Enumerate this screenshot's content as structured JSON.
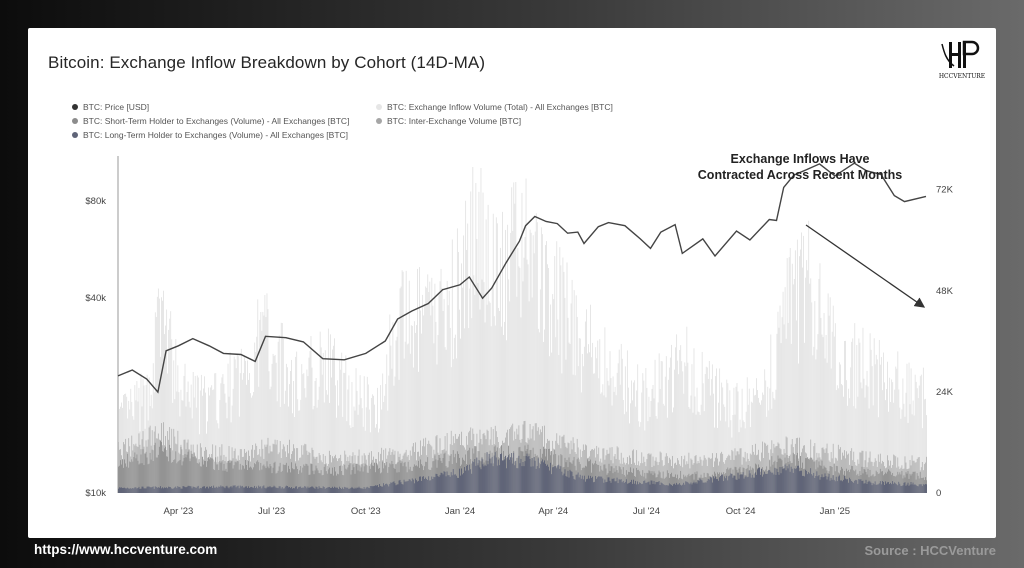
{
  "title": "Bitcoin: Exchange Inflow Breakdown by Cohort (14D-MA)",
  "brand": {
    "logo_text": "HCCVENTURE"
  },
  "footer": {
    "url": "https://www.hccventure.com",
    "source": "Source : HCCVenture"
  },
  "legend": [
    {
      "label": "BTC: Price [USD]",
      "color": "#333333"
    },
    {
      "label": "BTC: Exchange Inflow Volume (Total) - All Exchanges [BTC]",
      "color": "#e6e6e6"
    },
    {
      "label": "BTC: Short-Term Holder to Exchanges (Volume) - All Exchanges [BTC]",
      "color": "#8c8c8c"
    },
    {
      "label": "BTC: Inter-Exchange Volume [BTC]",
      "color": "#a6a6a6"
    },
    {
      "label": "BTC: Long-Term Holder to Exchanges (Volume) - All Exchanges [BTC]",
      "color": "#5f6478"
    }
  ],
  "annotation": {
    "line1": "Exchange Inflows Have",
    "line2": "Contracted Across Recent Months"
  },
  "chart_data": {
    "type": "bar",
    "x_range": [
      "2023-02-01",
      "2025-03-31"
    ],
    "x_ticks": [
      "Apr '23",
      "Jul '23",
      "Oct '23",
      "Jan '24",
      "Apr '24",
      "Jul '24",
      "Oct '24",
      "Jan '25"
    ],
    "y_left": {
      "scale": "log",
      "range": [
        10000,
        110000
      ],
      "ticks": [
        "$10k",
        "$40k",
        "$80k"
      ],
      "tick_values": [
        10000,
        40000,
        80000
      ]
    },
    "y_right": {
      "range": [
        0,
        80000
      ],
      "ticks": [
        "0",
        "24K",
        "48K",
        "72K"
      ],
      "tick_values": [
        0,
        24000,
        48000,
        72000
      ]
    },
    "price_usd": {
      "dates": [
        "2023-02-01",
        "2023-02-15",
        "2023-03-01",
        "2023-03-12",
        "2023-03-20",
        "2023-04-01",
        "2023-04-15",
        "2023-05-01",
        "2023-05-15",
        "2023-06-01",
        "2023-06-15",
        "2023-06-25",
        "2023-07-15",
        "2023-08-01",
        "2023-08-20",
        "2023-09-10",
        "2023-10-01",
        "2023-10-20",
        "2023-11-01",
        "2023-11-15",
        "2023-12-01",
        "2023-12-15",
        "2024-01-01",
        "2024-01-10",
        "2024-01-23",
        "2024-02-01",
        "2024-02-15",
        "2024-02-28",
        "2024-03-05",
        "2024-03-14",
        "2024-03-25",
        "2024-04-05",
        "2024-04-15",
        "2024-04-25",
        "2024-05-01",
        "2024-05-15",
        "2024-05-25",
        "2024-06-10",
        "2024-06-25",
        "2024-07-05",
        "2024-07-15",
        "2024-07-29",
        "2024-08-05",
        "2024-08-25",
        "2024-09-06",
        "2024-09-27",
        "2024-10-10",
        "2024-10-29",
        "2024-11-05",
        "2024-11-12",
        "2024-11-22",
        "2024-12-05",
        "2024-12-17",
        "2025-01-01",
        "2025-01-20",
        "2025-02-01",
        "2025-02-15",
        "2025-02-28",
        "2025-03-10",
        "2025-03-31"
      ],
      "values": [
        23000,
        24000,
        22500,
        20500,
        27500,
        28500,
        30000,
        28500,
        27000,
        26800,
        25500,
        30500,
        30200,
        29300,
        26000,
        25800,
        27000,
        29500,
        34500,
        36500,
        38500,
        42500,
        44000,
        46500,
        40000,
        43000,
        51500,
        60000,
        67000,
        71500,
        69000,
        68000,
        63500,
        64000,
        59000,
        66500,
        68500,
        67000,
        61000,
        57000,
        64000,
        67500,
        55000,
        61000,
        54000,
        64500,
        60500,
        70000,
        69500,
        88000,
        96000,
        100000,
        104000,
        95500,
        104500,
        99000,
        96500,
        83000,
        79500,
        82500
      ]
    },
    "inflow_series_btc": [
      {
        "name": "BTC: Exchange Inflow Volume (Total) - All Exchanges [BTC]",
        "profile_dates": [
          "2023-02-01",
          "2023-03-01",
          "2023-03-15",
          "2023-04-01",
          "2023-05-01",
          "2023-06-01",
          "2023-06-25",
          "2023-07-20",
          "2023-08-20",
          "2023-09-15",
          "2023-10-10",
          "2023-11-01",
          "2023-12-10",
          "2024-01-05",
          "2024-01-20",
          "2024-02-10",
          "2024-03-05",
          "2024-03-20",
          "2024-04-10",
          "2024-05-01",
          "2024-06-01",
          "2024-07-01",
          "2024-08-05",
          "2024-09-01",
          "2024-10-01",
          "2024-10-25",
          "2024-11-15",
          "2024-12-05",
          "2024-12-25",
          "2025-01-15",
          "2025-02-05",
          "2025-02-25",
          "2025-03-15",
          "2025-03-31"
        ],
        "profile_values": [
          20000,
          26000,
          50000,
          28000,
          24000,
          32000,
          45000,
          30000,
          36000,
          28000,
          23000,
          46000,
          48000,
          60000,
          75000,
          58000,
          72000,
          58000,
          50000,
          42000,
          32000,
          26000,
          36000,
          28000,
          22000,
          30000,
          50000,
          58000,
          42000,
          36000,
          34000,
          30000,
          28000,
          26000
        ]
      },
      {
        "name": "BTC: Inter-Exchange Volume [BTC]",
        "profile_dates": [
          "2023-02-01",
          "2023-03-15",
          "2023-04-15",
          "2023-06-01",
          "2023-07-01",
          "2023-09-01",
          "2023-11-01",
          "2024-01-10",
          "2024-03-10",
          "2024-05-01",
          "2024-07-01",
          "2024-09-01",
          "2024-11-15",
          "2024-12-15",
          "2025-02-01",
          "2025-03-31"
        ],
        "profile_values": [
          10000,
          14000,
          10000,
          9000,
          11000,
          8000,
          9000,
          13000,
          14000,
          10000,
          8000,
          7500,
          11000,
          10000,
          8000,
          7000
        ]
      },
      {
        "name": "BTC: Short-Term Holder to Exchanges (Volume) - All Exchanges [BTC]",
        "profile_dates": [
          "2023-02-01",
          "2023-03-15",
          "2023-05-01",
          "2023-07-01",
          "2023-09-01",
          "2023-11-15",
          "2024-01-15",
          "2024-03-10",
          "2024-05-15",
          "2024-07-01",
          "2024-09-01",
          "2024-11-20",
          "2025-01-01",
          "2025-03-31"
        ],
        "profile_values": [
          7000,
          10000,
          7000,
          6000,
          5500,
          6500,
          9000,
          9500,
          6000,
          4500,
          4000,
          8000,
          5500,
          4000
        ]
      },
      {
        "name": "BTC: Long-Term Holder to Exchanges (Volume) - All Exchanges [BTC]",
        "profile_dates": [
          "2023-02-01",
          "2023-06-01",
          "2023-10-01",
          "2024-01-05",
          "2024-01-25",
          "2024-03-10",
          "2024-05-01",
          "2024-08-01",
          "2024-11-20",
          "2024-12-20",
          "2025-02-01",
          "2025-03-31"
        ],
        "profile_values": [
          1200,
          1500,
          1200,
          5000,
          8000,
          7500,
          3500,
          2000,
          6000,
          4000,
          2500,
          2000
        ]
      }
    ]
  }
}
